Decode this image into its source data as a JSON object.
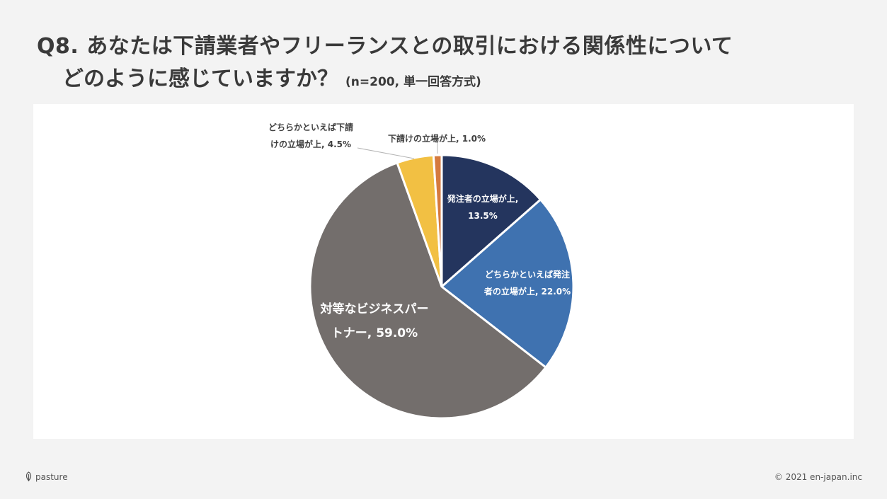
{
  "title": {
    "line1": "Q8. あなたは下請業者やフリーランスとの取引における関係性について",
    "line2": "どのように感じていますか？",
    "note": "(n=200, 単一回答方式)"
  },
  "chart_data": {
    "type": "pie",
    "title": "",
    "start": "top",
    "direction": "clockwise",
    "slices": [
      {
        "name": "発注者の立場が上",
        "value": 13.5,
        "color": "#24355e",
        "label_lines": [
          "発注者の立場が上,",
          "13.5%"
        ],
        "label_color": "#ffffff"
      },
      {
        "name": "どちらかといえば発注者の立場が上",
        "value": 22.0,
        "color": "#3f72b0",
        "label_lines": [
          "どちらかといえば発注",
          "者の立場が上, 22.0%"
        ],
        "label_color": "#ffffff"
      },
      {
        "name": "対等なビジネスパートナー",
        "value": 59.0,
        "color": "#736e6c",
        "label_lines": [
          "対等なビジネスパー",
          "トナー, 59.0%"
        ],
        "label_color": "#ffffff"
      },
      {
        "name": "どちらかといえば下請けの立場が上",
        "value": 4.5,
        "color": "#f2c043",
        "label_lines": [
          "どちらかといえば下請",
          "けの立場が上, 4.5%"
        ],
        "label_color": "#404040"
      },
      {
        "name": "下請けの立場が上",
        "value": 1.0,
        "color": "#d57a3e",
        "label_lines": [
          "下請けの立場が上, 1.0%"
        ],
        "label_color": "#404040"
      }
    ]
  },
  "footer": {
    "logo_text": "pasture",
    "copyright": "© 2021 en-japan.inc"
  }
}
